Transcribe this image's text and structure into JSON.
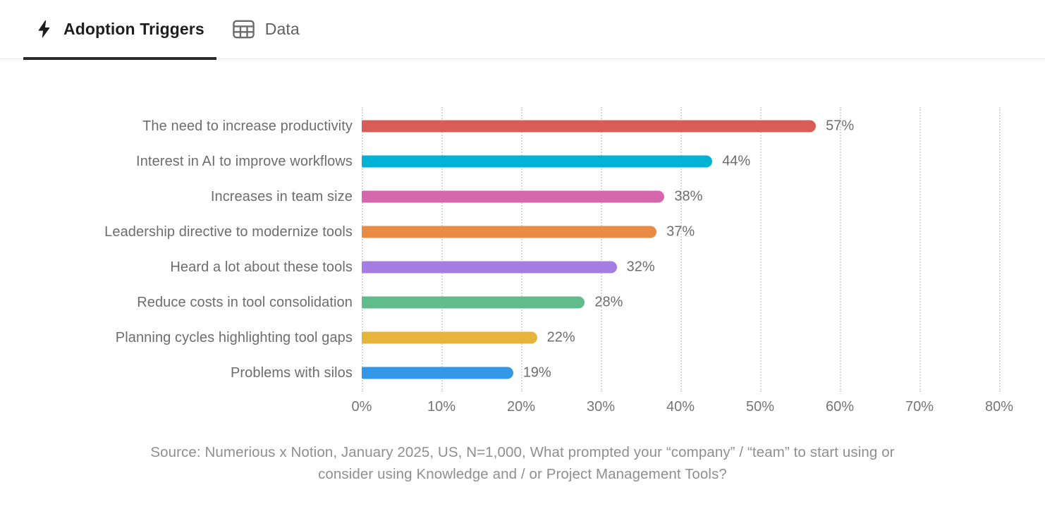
{
  "tabs": [
    {
      "label": "Adoption Triggers",
      "icon": "lightning-icon",
      "active": true
    },
    {
      "label": "Data",
      "icon": "table-icon",
      "active": false
    }
  ],
  "chart_data": {
    "type": "bar",
    "orientation": "horizontal",
    "title": "Adoption Triggers",
    "categories": [
      "The need to increase productivity",
      "Interest in AI to improve workflows",
      "Increases in team size",
      "Leadership directive to modernize tools",
      "Heard a lot about these tools",
      "Reduce costs in tool consolidation",
      "Planning cycles highlighting tool gaps",
      "Problems with silos"
    ],
    "values": [
      57,
      44,
      38,
      37,
      32,
      28,
      22,
      19
    ],
    "value_labels": [
      "57%",
      "44%",
      "38%",
      "37%",
      "32%",
      "28%",
      "22%",
      "19%"
    ],
    "bar_colors": [
      "#d95c57",
      "#00b3d4",
      "#d667ac",
      "#e98b45",
      "#a47ce2",
      "#61bc8b",
      "#e5b43a",
      "#3497e8"
    ],
    "xlim": [
      0,
      80
    ],
    "x_ticks": [
      "0%",
      "10%",
      "20%",
      "30%",
      "40%",
      "50%",
      "60%",
      "70%",
      "80%"
    ],
    "grid": "dotted-vertical",
    "legend": "none",
    "source_line1": "Source: Numerious x Notion, January 2025, US, N=1,000, What prompted your “company” / “team” to start using or",
    "source_line2": "consider using Knowledge and / or Project Management Tools?"
  }
}
